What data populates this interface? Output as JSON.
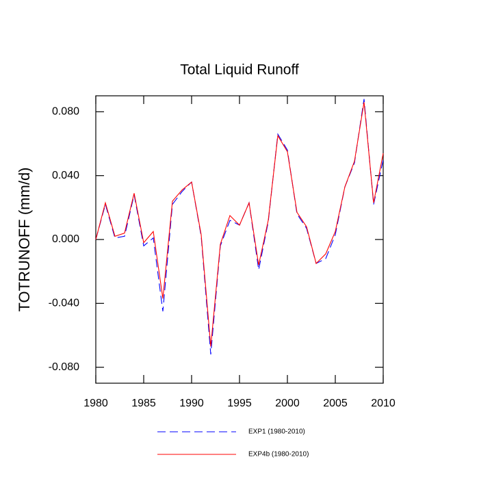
{
  "chart_data": {
    "type": "line",
    "title": "Total Liquid Runoff",
    "y_label": "TOTRUNOFF  (mm/d)",
    "x": [
      1980,
      1981,
      1982,
      1983,
      1984,
      1985,
      1986,
      1987,
      1988,
      1989,
      1990,
      1991,
      1992,
      1993,
      1994,
      1995,
      1996,
      1997,
      1998,
      1999,
      2000,
      2001,
      2002,
      2003,
      2004,
      2005,
      2006,
      2007,
      2008,
      2009,
      2010
    ],
    "series": [
      {
        "name": "EXP1 (1980-2010)",
        "color": "#0000ff",
        "dashed": true,
        "values": [
          0.0,
          0.022,
          0.001,
          0.002,
          0.028,
          -0.004,
          0.001,
          -0.045,
          0.022,
          0.03,
          0.036,
          0.002,
          -0.072,
          -0.004,
          0.012,
          0.009,
          0.023,
          -0.019,
          0.011,
          0.066,
          0.056,
          0.016,
          0.007,
          -0.015,
          -0.012,
          0.003,
          0.033,
          0.048,
          0.088,
          0.022,
          0.05
        ]
      },
      {
        "name": "EXP4b (1980-2010)",
        "color": "#ff0000",
        "dashed": false,
        "values": [
          0.0,
          0.023,
          0.002,
          0.004,
          0.029,
          -0.002,
          0.005,
          -0.037,
          0.024,
          0.031,
          0.036,
          0.003,
          -0.067,
          -0.003,
          0.015,
          0.009,
          0.023,
          -0.016,
          0.012,
          0.065,
          0.055,
          0.017,
          0.008,
          -0.015,
          -0.009,
          0.005,
          0.033,
          0.049,
          0.086,
          0.023,
          0.054
        ]
      }
    ],
    "xlim": [
      1980,
      2010
    ],
    "xticks": [
      1980,
      1985,
      1990,
      1995,
      2000,
      2005,
      2010
    ],
    "ylim": [
      -0.09,
      0.09
    ],
    "yticks": [
      {
        "value": -0.08,
        "label": "-0.080"
      },
      {
        "value": -0.04,
        "label": "-0.040"
      },
      {
        "value": 0,
        "label": "0.000"
      },
      {
        "value": 0.04,
        "label": "0.040"
      },
      {
        "value": 0.08,
        "label": "0.080"
      }
    ]
  }
}
